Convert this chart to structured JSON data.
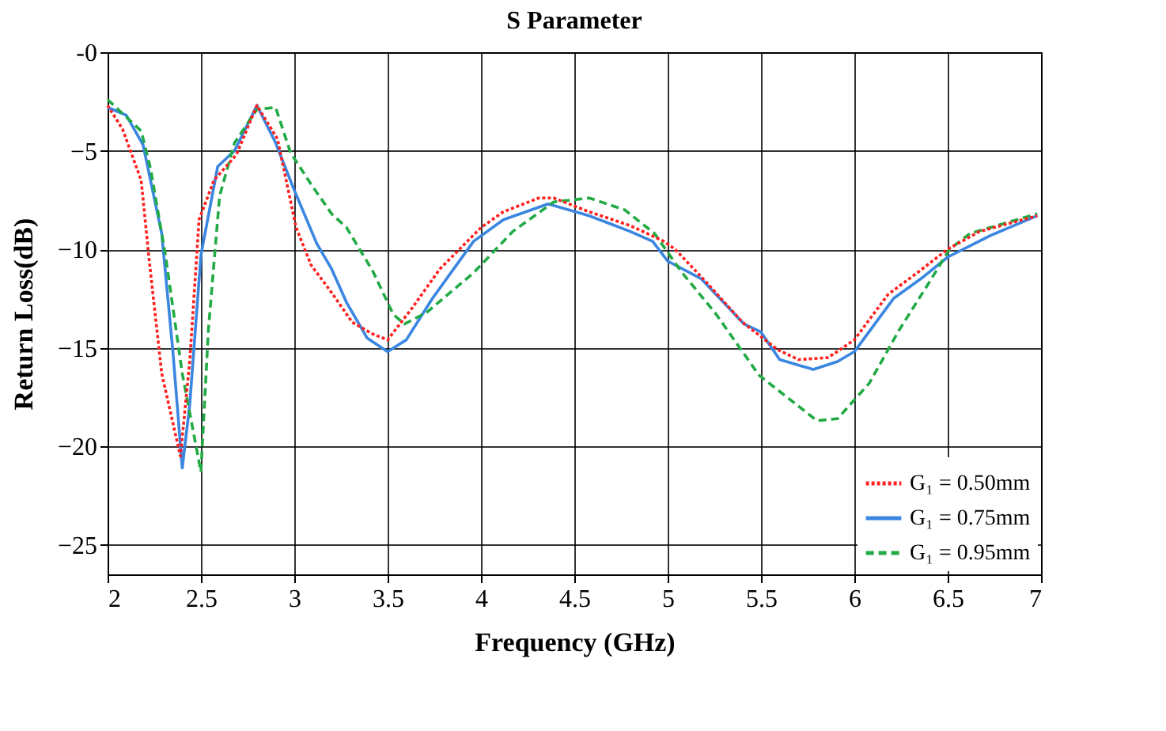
{
  "chart_data": {
    "type": "line",
    "title": "S Parameter",
    "xlabel": "Frequency (GHz)",
    "ylabel": "Return Loss(dB)",
    "xlim": [
      2,
      7
    ],
    "xticks": [
      2,
      2.5,
      3,
      3.5,
      4,
      4.5,
      5,
      5.5,
      6,
      6.5,
      7
    ],
    "ylim": [
      -26.5,
      0
    ],
    "yticks": [
      {
        "value": 0,
        "label": "-0"
      },
      -5,
      -10,
      -15,
      -20,
      -25
    ],
    "grid": true,
    "legend": "bottom right",
    "marker": "none",
    "series": [
      {
        "name": "G₁ = 0.50mm",
        "color": "#ff2020",
        "line_style": "dotted",
        "x": [
          2.0,
          2.08,
          2.18,
          2.22,
          2.29,
          2.39,
          2.44,
          2.49,
          2.57,
          2.69,
          2.8,
          2.91,
          3.01,
          3.09,
          3.2,
          3.31,
          3.42,
          3.5,
          3.63,
          3.78,
          4.0,
          4.12,
          4.31,
          4.39,
          4.58,
          4.8,
          4.98,
          5.04,
          5.21,
          5.4,
          5.59,
          5.7,
          5.86,
          6.0,
          6.18,
          6.35,
          6.5,
          6.67,
          6.98
        ],
        "values": [
          -2.7,
          -3.9,
          -6.5,
          -10.3,
          -16.3,
          -20.5,
          -15.7,
          -8.5,
          -6.5,
          -5.2,
          -2.7,
          -4.4,
          -8.9,
          -10.8,
          -12.2,
          -13.7,
          -14.3,
          -14.6,
          -13.0,
          -11.0,
          -8.9,
          -8.1,
          -7.4,
          -7.4,
          -8.1,
          -8.8,
          -9.6,
          -10.0,
          -11.7,
          -13.7,
          -15.1,
          -15.6,
          -15.5,
          -14.6,
          -12.3,
          -11.1,
          -10.0,
          -9.1,
          -8.3
        ]
      },
      {
        "name": "G₁ = 0.75mm",
        "color": "#3a86e0",
        "line_style": "solid",
        "x": [
          2.0,
          2.1,
          2.19,
          2.29,
          2.35,
          2.4,
          2.44,
          2.5,
          2.59,
          2.68,
          2.8,
          2.9,
          3.0,
          3.12,
          3.2,
          3.28,
          3.39,
          3.5,
          3.6,
          3.74,
          3.96,
          4.12,
          4.36,
          4.58,
          4.8,
          4.92,
          5.0,
          5.18,
          5.41,
          5.5,
          5.6,
          5.78,
          5.91,
          6.0,
          6.21,
          6.37,
          6.5,
          6.73,
          6.98
        ],
        "values": [
          -2.8,
          -3.2,
          -4.7,
          -9.2,
          -15.2,
          -21.1,
          -17.9,
          -10.3,
          -5.8,
          -5.0,
          -2.7,
          -4.6,
          -7.0,
          -9.7,
          -11.0,
          -12.7,
          -14.5,
          -15.2,
          -14.6,
          -12.5,
          -9.6,
          -8.5,
          -7.7,
          -8.3,
          -9.1,
          -9.6,
          -10.6,
          -11.5,
          -13.8,
          -14.2,
          -15.6,
          -16.1,
          -15.7,
          -15.2,
          -12.5,
          -11.4,
          -10.4,
          -9.3,
          -8.3
        ]
      },
      {
        "name": "G₁ = 0.95mm",
        "color": "#22aa44",
        "line_style": "dashed",
        "x": [
          2.0,
          2.18,
          2.23,
          2.31,
          2.4,
          2.5,
          2.54,
          2.6,
          2.68,
          2.8,
          2.9,
          2.98,
          3.09,
          3.2,
          3.28,
          3.42,
          3.53,
          3.59,
          3.71,
          3.96,
          4.17,
          4.39,
          4.58,
          4.77,
          4.93,
          5.07,
          5.26,
          5.49,
          5.8,
          5.91,
          6.08,
          6.24,
          6.4,
          6.51,
          6.62,
          6.98
        ],
        "values": [
          -2.4,
          -4.0,
          -5.9,
          -10.3,
          -16.3,
          -21.3,
          -14.1,
          -7.3,
          -4.6,
          -2.9,
          -2.8,
          -5.1,
          -6.7,
          -8.2,
          -8.9,
          -11.1,
          -13.3,
          -13.8,
          -13.2,
          -11.2,
          -9.1,
          -7.6,
          -7.4,
          -8.0,
          -9.2,
          -11.1,
          -13.3,
          -16.4,
          -18.7,
          -18.6,
          -16.8,
          -14.1,
          -11.7,
          -10.0,
          -9.2,
          -8.2
        ]
      }
    ]
  }
}
